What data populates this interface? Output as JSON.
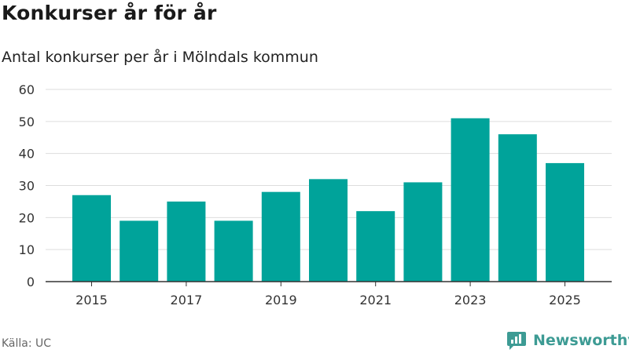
{
  "page": {
    "title": "Konkurser år för år",
    "subtitle": "Antal konkurser per år i Mölndals kommun",
    "source": "Källa: UC",
    "brand": "Newsworthy"
  },
  "colors": {
    "bar": "#00a39a",
    "grid": "#dddddd",
    "axis": "#333333",
    "brand": "#3d9b94"
  },
  "chart_data": {
    "type": "bar",
    "title": "Konkurser år för år",
    "subtitle": "Antal konkurser per år i Mölndals kommun",
    "xlabel": "",
    "ylabel": "",
    "categories": [
      "2015",
      "2016",
      "2017",
      "2018",
      "2019",
      "2020",
      "2021",
      "2022",
      "2023",
      "2024",
      "2025"
    ],
    "values": [
      27,
      19,
      25,
      19,
      28,
      32,
      22,
      31,
      51,
      46,
      37
    ],
    "x_tick_labels": [
      "2015",
      "2017",
      "2019",
      "2021",
      "2023",
      "2025"
    ],
    "y_ticks": [
      0,
      10,
      20,
      30,
      40,
      50,
      60
    ],
    "ylim": [
      0,
      60
    ],
    "grid": true,
    "legend": "none"
  }
}
